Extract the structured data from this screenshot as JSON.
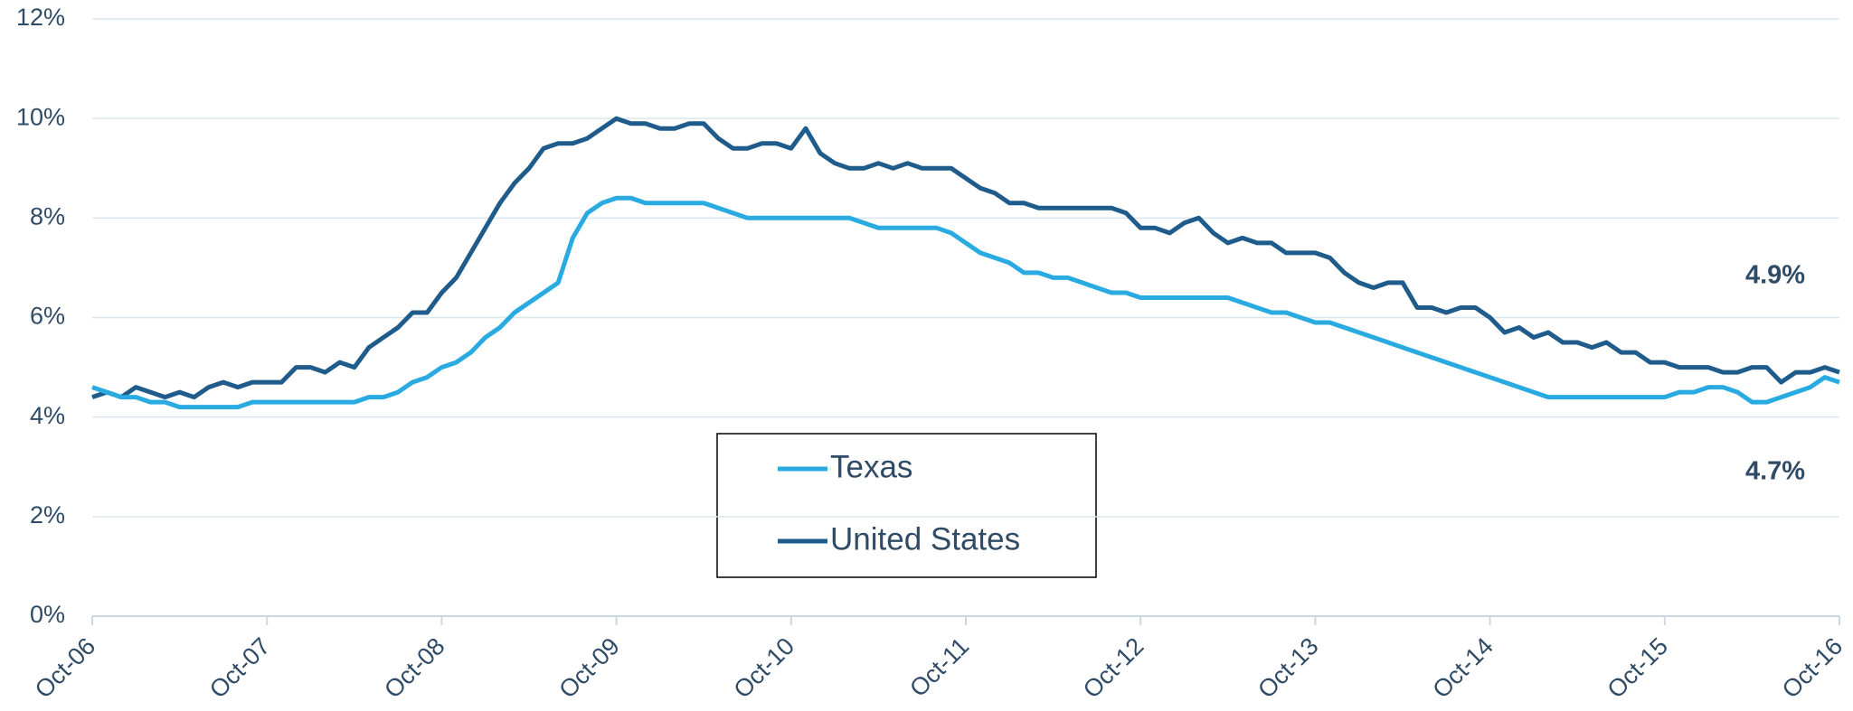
{
  "chart_data": {
    "type": "line",
    "categories": [
      "Oct-06",
      null,
      null,
      null,
      null,
      null,
      null,
      null,
      null,
      null,
      null,
      null,
      "Oct-07",
      null,
      null,
      null,
      null,
      null,
      null,
      null,
      null,
      null,
      null,
      null,
      "Oct-08",
      null,
      null,
      null,
      null,
      null,
      null,
      null,
      null,
      null,
      null,
      null,
      "Oct-09",
      null,
      null,
      null,
      null,
      null,
      null,
      null,
      null,
      null,
      null,
      null,
      "Oct-10",
      null,
      null,
      null,
      null,
      null,
      null,
      null,
      null,
      null,
      null,
      null,
      "Oct-11",
      null,
      null,
      null,
      null,
      null,
      null,
      null,
      null,
      null,
      null,
      null,
      "Oct-12",
      null,
      null,
      null,
      null,
      null,
      null,
      null,
      null,
      null,
      null,
      null,
      "Oct-13",
      null,
      null,
      null,
      null,
      null,
      null,
      null,
      null,
      null,
      null,
      null,
      "Oct-14",
      null,
      null,
      null,
      null,
      null,
      null,
      null,
      null,
      null,
      null,
      null,
      "Oct-15",
      null,
      null,
      null,
      null,
      null,
      null,
      null,
      null,
      null,
      null,
      null,
      "Oct-16"
    ],
    "series": [
      {
        "name": "Texas",
        "color": "#29abe2",
        "values": [
          4.6,
          4.5,
          4.4,
          4.4,
          4.3,
          4.3,
          4.2,
          4.2,
          4.2,
          4.2,
          4.2,
          4.3,
          4.3,
          4.3,
          4.3,
          4.3,
          4.3,
          4.3,
          4.3,
          4.4,
          4.4,
          4.5,
          4.7,
          4.8,
          5.0,
          5.1,
          5.3,
          5.6,
          5.8,
          6.1,
          6.3,
          6.5,
          6.7,
          7.6,
          8.1,
          8.3,
          8.4,
          8.4,
          8.3,
          8.3,
          8.3,
          8.3,
          8.3,
          8.2,
          8.1,
          8.0,
          8.0,
          8.0,
          8.0,
          8.0,
          8.0,
          8.0,
          8.0,
          7.9,
          7.8,
          7.8,
          7.8,
          7.8,
          7.8,
          7.7,
          7.5,
          7.3,
          7.2,
          7.1,
          6.9,
          6.9,
          6.8,
          6.8,
          6.7,
          6.6,
          6.5,
          6.5,
          6.4,
          6.4,
          6.4,
          6.4,
          6.4,
          6.4,
          6.4,
          6.3,
          6.2,
          6.1,
          6.1,
          6.0,
          5.9,
          5.9,
          5.8,
          5.7,
          5.6,
          5.5,
          5.4,
          5.3,
          5.2,
          5.1,
          5.0,
          4.9,
          4.8,
          4.7,
          4.6,
          4.5,
          4.4,
          4.4,
          4.4,
          4.4,
          4.4,
          4.4,
          4.4,
          4.4,
          4.4,
          4.5,
          4.5,
          4.6,
          4.6,
          4.5,
          4.3,
          4.3,
          4.4,
          4.5,
          4.6,
          4.8,
          4.7
        ]
      },
      {
        "name": "United States",
        "color": "#1f5c8b",
        "values": [
          4.4,
          4.5,
          4.4,
          4.6,
          4.5,
          4.4,
          4.5,
          4.4,
          4.6,
          4.7,
          4.6,
          4.7,
          4.7,
          4.7,
          5.0,
          5.0,
          4.9,
          5.1,
          5.0,
          5.4,
          5.6,
          5.8,
          6.1,
          6.1,
          6.5,
          6.8,
          7.3,
          7.8,
          8.3,
          8.7,
          9.0,
          9.4,
          9.5,
          9.5,
          9.6,
          9.8,
          10.0,
          9.9,
          9.9,
          9.8,
          9.8,
          9.9,
          9.9,
          9.6,
          9.4,
          9.4,
          9.5,
          9.5,
          9.4,
          9.8,
          9.3,
          9.1,
          9.0,
          9.0,
          9.1,
          9.0,
          9.1,
          9.0,
          9.0,
          9.0,
          8.8,
          8.6,
          8.5,
          8.3,
          8.3,
          8.2,
          8.2,
          8.2,
          8.2,
          8.2,
          8.2,
          8.1,
          7.8,
          7.8,
          7.7,
          7.9,
          8.0,
          7.7,
          7.5,
          7.6,
          7.5,
          7.5,
          7.3,
          7.3,
          7.3,
          7.2,
          6.9,
          6.7,
          6.6,
          6.7,
          6.7,
          6.2,
          6.2,
          6.1,
          6.2,
          6.2,
          6.0,
          5.7,
          5.8,
          5.6,
          5.7,
          5.5,
          5.5,
          5.4,
          5.5,
          5.3,
          5.3,
          5.1,
          5.1,
          5.0,
          5.0,
          5.0,
          4.9,
          4.9,
          5.0,
          5.0,
          4.7,
          4.9,
          4.9,
          5.0,
          4.9
        ]
      }
    ],
    "ylim": [
      0,
      12
    ],
    "yticks": [
      {
        "value": 0,
        "label": "0%"
      },
      {
        "value": 2,
        "label": "2%"
      },
      {
        "value": 4,
        "label": "4%"
      },
      {
        "value": 6,
        "label": "6%"
      },
      {
        "value": 8,
        "label": "8%"
      },
      {
        "value": 10,
        "label": "10%"
      },
      {
        "value": 12,
        "label": "12%"
      }
    ],
    "grid": true,
    "annotations": [
      "4.9%",
      "4.7%"
    ]
  }
}
